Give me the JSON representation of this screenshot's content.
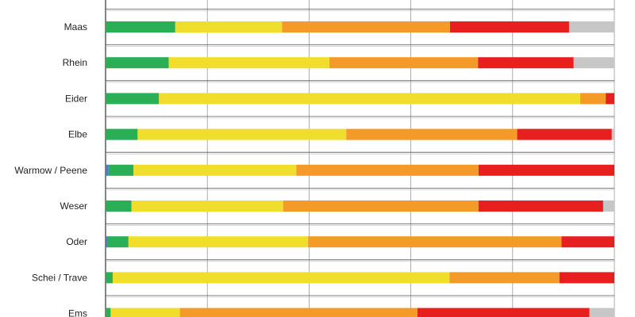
{
  "chart_data": {
    "type": "bar",
    "orientation": "horizontal",
    "stacked": true,
    "percent": true,
    "xlim": [
      0,
      100
    ],
    "grid": true,
    "categories": [
      "Maas",
      "Rhein",
      "Eider",
      "Elbe",
      "Warmow / Peene",
      "Weser",
      "Oder",
      "Schei / Trave",
      "Ems"
    ],
    "series": [
      {
        "color": "#4a7cc7",
        "values": [
          0,
          0,
          0,
          0,
          0.6,
          0,
          0.4,
          0,
          0
        ]
      },
      {
        "color": "#2aae56",
        "values": [
          13.7,
          12.4,
          10.5,
          6.3,
          4.9,
          5.1,
          4.1,
          1.4,
          1.0
        ]
      },
      {
        "color": "#f1de2c",
        "values": [
          21.0,
          31.6,
          82.8,
          41.0,
          32.0,
          29.8,
          35.3,
          66.2,
          13.6
        ]
      },
      {
        "color": "#f49a28",
        "values": [
          33.0,
          29.2,
          5.0,
          33.6,
          35.8,
          38.4,
          49.8,
          21.6,
          46.7
        ]
      },
      {
        "color": "#e7201f",
        "values": [
          23.4,
          18.8,
          1.7,
          18.6,
          26.7,
          24.5,
          10.4,
          10.8,
          33.8
        ]
      },
      {
        "color": "#c7c7c7",
        "values": [
          8.9,
          8.0,
          0,
          0.5,
          0,
          2.2,
          0,
          0,
          4.9
        ]
      }
    ]
  }
}
